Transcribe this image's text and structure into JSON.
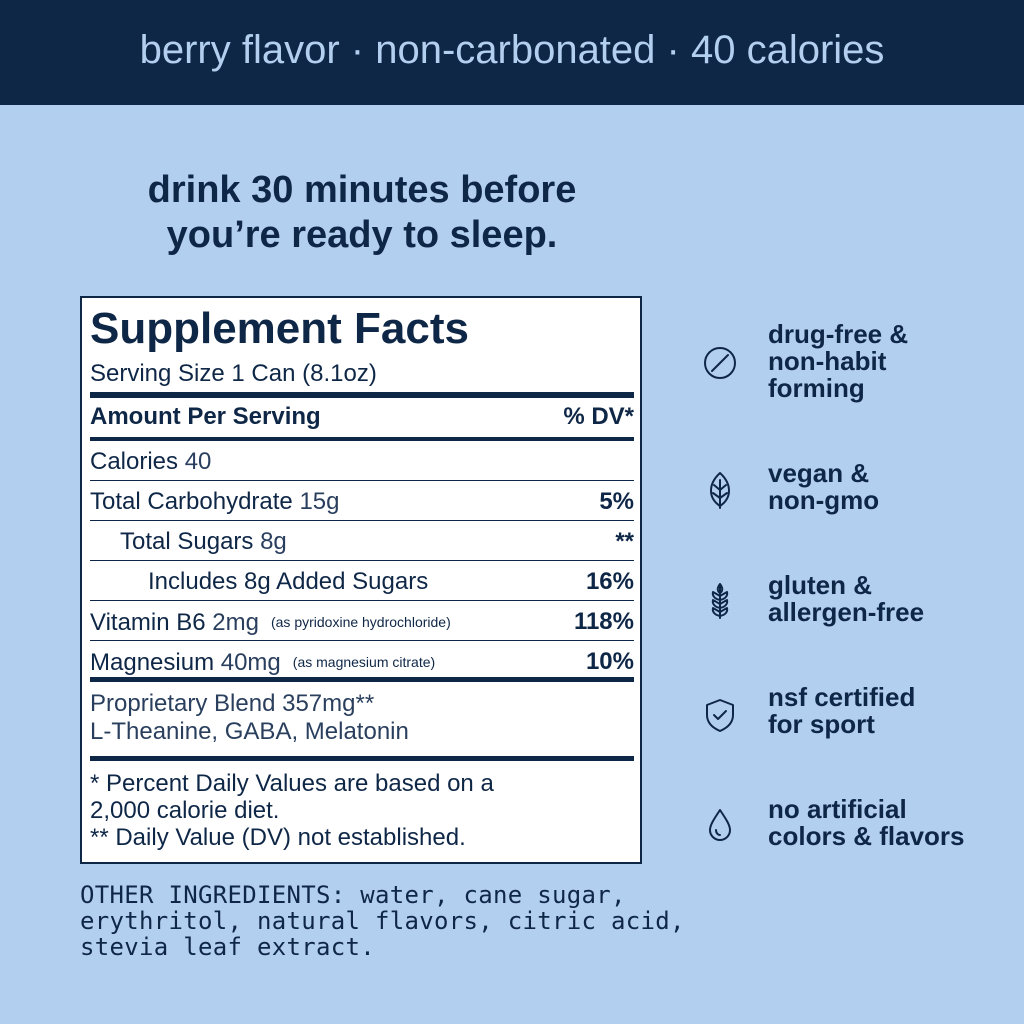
{
  "header": {
    "title": "berry flavor · non-carbonated · 40 calories"
  },
  "tagline": {
    "lines": [
      "drink 30 minutes before",
      "you’re ready to sleep."
    ]
  },
  "facts": {
    "title": "Supplement Facts",
    "serving": "Serving Size 1 Can (8.1oz)",
    "amount_header": "Amount Per Serving",
    "dv_header": "% DV*",
    "rows": [
      {
        "name": "Calories",
        "amount": "40"
      },
      {
        "name": "Total Carbohydrate",
        "amount": "15g",
        "dv": "5%"
      },
      {
        "name": "Total Sugars",
        "amount": "8g",
        "dv": "**"
      },
      {
        "name": "Includes 8g Added Sugars",
        "dv": "16%"
      },
      {
        "name": "Vitamin B6",
        "amount": "2mg",
        "note": "(as pyridoxine hydrochloride)",
        "dv": "118%"
      },
      {
        "name": "Magnesium",
        "amount": "40mg",
        "note": "(as magnesium citrate)",
        "dv": "10%"
      }
    ],
    "blend": {
      "lines": [
        "Proprietary Blend 357mg**",
        "L-Theanine, GABA, Melatonin"
      ]
    },
    "footnotes": {
      "lines": [
        "* Percent Daily Values are based on a",
        "2,000 calorie diet.",
        "** Daily Value (DV) not established."
      ]
    }
  },
  "other_ingredients": {
    "lines": [
      "OTHER INGREDIENTS: water, cane sugar,",
      "erythritol, natural flavors, citric acid,",
      "stevia leaf extract."
    ]
  },
  "features": [
    {
      "lines": [
        "drug-free &",
        "non-habit",
        "forming"
      ]
    },
    {
      "lines": [
        "vegan &",
        "non-gmo"
      ]
    },
    {
      "lines": [
        "gluten &",
        "allergen-free"
      ]
    },
    {
      "lines": [
        "nsf certified",
        "for sport"
      ]
    },
    {
      "lines": [
        "no artificial",
        "colors & flavors"
      ]
    }
  ]
}
